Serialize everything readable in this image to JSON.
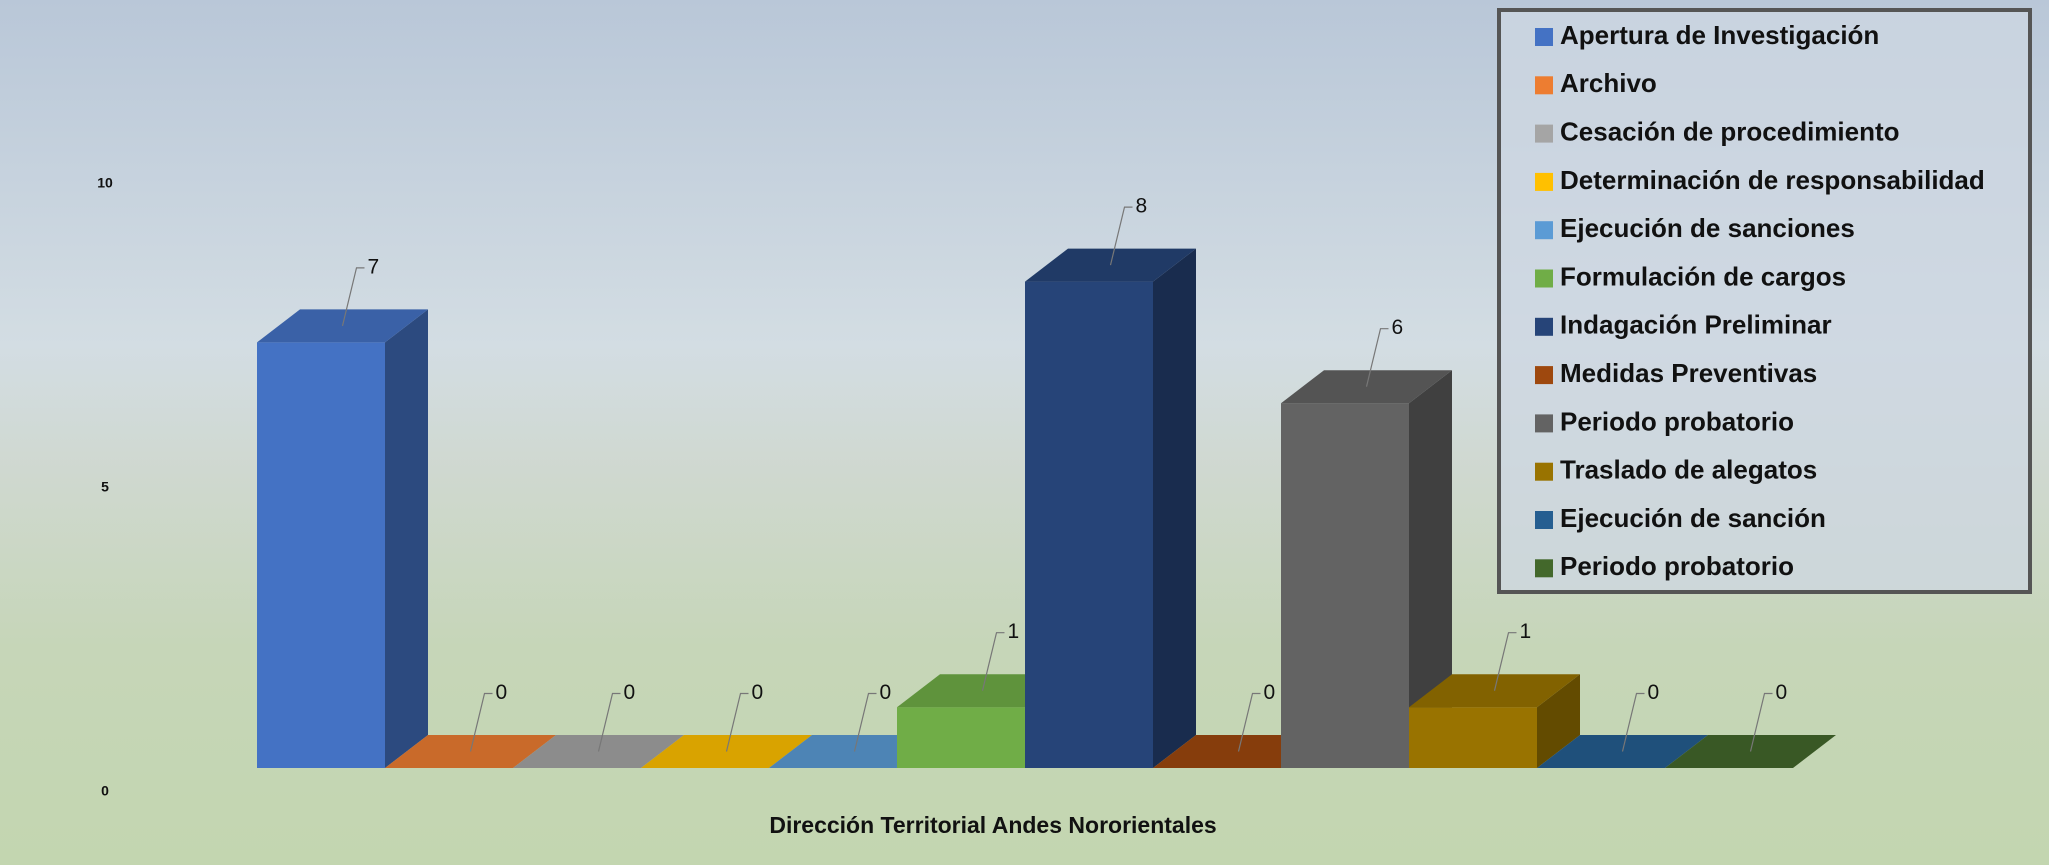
{
  "chart_data": {
    "type": "bar3d",
    "categories": [
      "Dirección Territorial Andes Nororientales"
    ],
    "ylim": [
      0,
      10
    ],
    "yticks": [
      0,
      5,
      10
    ],
    "grid": false,
    "legend": "top-right",
    "series": [
      {
        "name": "Apertura de Investigación",
        "color": "#4472c4",
        "values": [
          7
        ]
      },
      {
        "name": "Archivo",
        "color": "#ed7d31",
        "values": [
          0
        ]
      },
      {
        "name": "Cesación de procedimiento",
        "color": "#a5a5a5",
        "values": [
          0
        ]
      },
      {
        "name": "Determinación de responsabilidad",
        "color": "#ffc000",
        "values": [
          0
        ]
      },
      {
        "name": "Ejecución de sanciones",
        "color": "#5b9bd5",
        "values": [
          0
        ]
      },
      {
        "name": "Formulación de cargos",
        "color": "#70ad47",
        "values": [
          1
        ]
      },
      {
        "name": "Indagación Preliminar",
        "color": "#264478",
        "values": [
          8
        ]
      },
      {
        "name": "Medidas Preventivas",
        "color": "#9e480e",
        "values": [
          0
        ]
      },
      {
        "name": "Periodo probatorio",
        "color": "#636363",
        "values": [
          6
        ]
      },
      {
        "name": "Traslado de alegatos",
        "color": "#997300",
        "values": [
          1
        ]
      },
      {
        "name": "Ejecución de sanción",
        "color": "#255e91",
        "values": [
          0
        ]
      },
      {
        "name": "Periodo probatorio",
        "color": "#43682b",
        "values": [
          0
        ]
      }
    ]
  }
}
